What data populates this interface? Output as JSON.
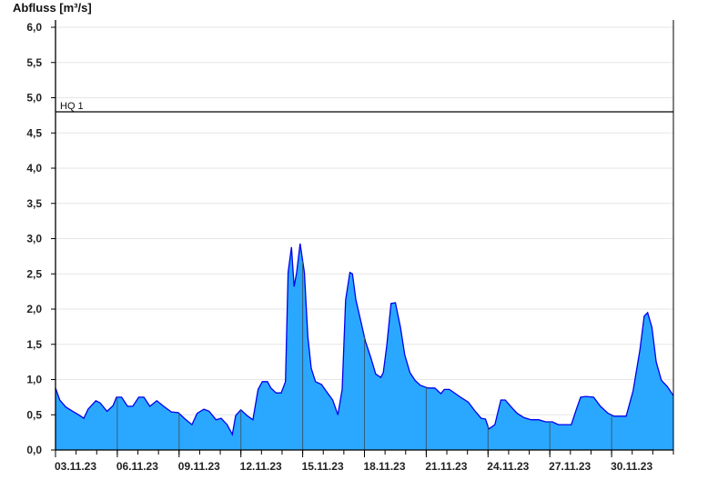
{
  "chart_data": {
    "type": "area",
    "ylabel": "Abfluss [m³/s]",
    "xlabel": "",
    "ylim": [
      0,
      6.0
    ],
    "xlim": [
      "2023-11-03 00:00",
      "2023-12-03 00:00"
    ],
    "y_ticks": [
      "0,0",
      "0,5",
      "1,0",
      "1,5",
      "2,0",
      "2,5",
      "3,0",
      "3,5",
      "4,0",
      "4,5",
      "5,0",
      "5,5",
      "6,0"
    ],
    "x_ticks": [
      {
        "date": "2023-11-03",
        "label": "03.11.23"
      },
      {
        "date": "2023-11-06",
        "label": "06.11.23"
      },
      {
        "date": "2023-11-09",
        "label": "09.11.23"
      },
      {
        "date": "2023-11-12",
        "label": "12.11.23"
      },
      {
        "date": "2023-11-15",
        "label": "15.11.23"
      },
      {
        "date": "2023-11-18",
        "label": "18.11.23"
      },
      {
        "date": "2023-11-21",
        "label": "21.11.23"
      },
      {
        "date": "2023-11-24",
        "label": "24.11.23"
      },
      {
        "date": "2023-11-27",
        "label": "27.11.23"
      },
      {
        "date": "2023-11-30",
        "label": "30.11.23"
      }
    ],
    "grid": true,
    "reference_lines": [
      {
        "label": "HQ 1",
        "value": 4.8
      }
    ],
    "colors": {
      "fill": "#2aa8ff",
      "line": "#0000ee",
      "grid": "#e6e6e6",
      "ref": "#000000"
    },
    "series": [
      {
        "points": [
          [
            "2023-11-03 00:00",
            0.88
          ],
          [
            "2023-11-03 05:00",
            0.71
          ],
          [
            "2023-11-03 12:00",
            0.61
          ],
          [
            "2023-11-03 20:00",
            0.55
          ],
          [
            "2023-11-04 03:00",
            0.5
          ],
          [
            "2023-11-04 09:00",
            0.45
          ],
          [
            "2023-11-04 14:00",
            0.58
          ],
          [
            "2023-11-04 23:00",
            0.7
          ],
          [
            "2023-11-05 04:00",
            0.67
          ],
          [
            "2023-11-05 12:00",
            0.55
          ],
          [
            "2023-11-05 19:00",
            0.63
          ],
          [
            "2023-11-05 23:00",
            0.75
          ],
          [
            "2023-11-06 05:00",
            0.75
          ],
          [
            "2023-11-06 12:00",
            0.62
          ],
          [
            "2023-11-06 18:00",
            0.62
          ],
          [
            "2023-11-07 01:00",
            0.75
          ],
          [
            "2023-11-07 07:00",
            0.75
          ],
          [
            "2023-11-07 14:00",
            0.62
          ],
          [
            "2023-11-07 22:00",
            0.7
          ],
          [
            "2023-11-08 06:00",
            0.62
          ],
          [
            "2023-11-08 15:00",
            0.54
          ],
          [
            "2023-11-08 23:00",
            0.53
          ],
          [
            "2023-11-09 06:00",
            0.45
          ],
          [
            "2023-11-09 15:00",
            0.36
          ],
          [
            "2023-11-09 21:00",
            0.52
          ],
          [
            "2023-11-10 05:00",
            0.58
          ],
          [
            "2023-11-10 11:00",
            0.55
          ],
          [
            "2023-11-10 19:00",
            0.43
          ],
          [
            "2023-11-11 01:00",
            0.45
          ],
          [
            "2023-11-11 08:00",
            0.36
          ],
          [
            "2023-11-11 14:00",
            0.22
          ],
          [
            "2023-11-11 18:00",
            0.49
          ],
          [
            "2023-11-12 00:00",
            0.57
          ],
          [
            "2023-11-12 07:00",
            0.49
          ],
          [
            "2023-11-12 14:00",
            0.43
          ],
          [
            "2023-11-12 20:00",
            0.86
          ],
          [
            "2023-11-13 01:00",
            0.97
          ],
          [
            "2023-11-13 07:00",
            0.97
          ],
          [
            "2023-11-13 11:00",
            0.88
          ],
          [
            "2023-11-13 17:00",
            0.81
          ],
          [
            "2023-11-13 23:00",
            0.81
          ],
          [
            "2023-11-14 04:00",
            0.97
          ],
          [
            "2023-11-14 07:00",
            2.52
          ],
          [
            "2023-11-14 11:00",
            2.88
          ],
          [
            "2023-11-14 14:00",
            2.32
          ],
          [
            "2023-11-14 17:00",
            2.52
          ],
          [
            "2023-11-14 21:00",
            2.93
          ],
          [
            "2023-11-15 02:00",
            2.52
          ],
          [
            "2023-11-15 06:00",
            1.61
          ],
          [
            "2023-11-15 10:00",
            1.16
          ],
          [
            "2023-11-15 15:00",
            0.97
          ],
          [
            "2023-11-15 22:00",
            0.93
          ],
          [
            "2023-11-16 05:00",
            0.81
          ],
          [
            "2023-11-16 11:00",
            0.71
          ],
          [
            "2023-11-16 17:00",
            0.5
          ],
          [
            "2023-11-16 22:00",
            0.86
          ],
          [
            "2023-11-17 02:00",
            2.13
          ],
          [
            "2023-11-17 07:00",
            2.52
          ],
          [
            "2023-11-17 10:00",
            2.5
          ],
          [
            "2023-11-17 14:00",
            2.13
          ],
          [
            "2023-11-17 19:00",
            1.87
          ],
          [
            "2023-11-18 01:00",
            1.55
          ],
          [
            "2023-11-18 08:00",
            1.29
          ],
          [
            "2023-11-18 13:00",
            1.08
          ],
          [
            "2023-11-18 19:00",
            1.03
          ],
          [
            "2023-11-18 22:00",
            1.1
          ],
          [
            "2023-11-19 02:00",
            1.48
          ],
          [
            "2023-11-19 07:00",
            2.08
          ],
          [
            "2023-11-19 12:00",
            2.09
          ],
          [
            "2023-11-19 18:00",
            1.74
          ],
          [
            "2023-11-19 23:00",
            1.35
          ],
          [
            "2023-11-20 05:00",
            1.1
          ],
          [
            "2023-11-20 11:00",
            0.99
          ],
          [
            "2023-11-20 17:00",
            0.92
          ],
          [
            "2023-11-21 02:00",
            0.88
          ],
          [
            "2023-11-21 10:00",
            0.88
          ],
          [
            "2023-11-21 17:00",
            0.8
          ],
          [
            "2023-11-21 21:00",
            0.86
          ],
          [
            "2023-11-22 03:00",
            0.86
          ],
          [
            "2023-11-22 10:00",
            0.8
          ],
          [
            "2023-11-22 17:00",
            0.74
          ],
          [
            "2023-11-23 01:00",
            0.68
          ],
          [
            "2023-11-23 09:00",
            0.55
          ],
          [
            "2023-11-23 16:00",
            0.45
          ],
          [
            "2023-11-23 21:00",
            0.44
          ],
          [
            "2023-11-24 01:00",
            0.3
          ],
          [
            "2023-11-24 08:00",
            0.36
          ],
          [
            "2023-11-24 15:00",
            0.71
          ],
          [
            "2023-11-24 20:00",
            0.71
          ],
          [
            "2023-11-25 03:00",
            0.61
          ],
          [
            "2023-11-25 10:00",
            0.52
          ],
          [
            "2023-11-25 18:00",
            0.46
          ],
          [
            "2023-11-26 02:00",
            0.43
          ],
          [
            "2023-11-26 11:00",
            0.43
          ],
          [
            "2023-11-26 19:00",
            0.4
          ],
          [
            "2023-11-27 03:00",
            0.4
          ],
          [
            "2023-11-27 10:00",
            0.36
          ],
          [
            "2023-11-28 01:00",
            0.36
          ],
          [
            "2023-11-28 07:00",
            0.58
          ],
          [
            "2023-11-28 12:00",
            0.75
          ],
          [
            "2023-11-28 18:00",
            0.76
          ],
          [
            "2023-11-29 03:00",
            0.75
          ],
          [
            "2023-11-29 11:00",
            0.62
          ],
          [
            "2023-11-29 20:00",
            0.52
          ],
          [
            "2023-11-30 03:00",
            0.48
          ],
          [
            "2023-11-30 17:00",
            0.48
          ],
          [
            "2023-12-01 01:00",
            0.84
          ],
          [
            "2023-12-01 09:00",
            1.42
          ],
          [
            "2023-12-01 14:00",
            1.9
          ],
          [
            "2023-12-01 18:00",
            1.95
          ],
          [
            "2023-12-01 23:00",
            1.74
          ],
          [
            "2023-12-02 04:00",
            1.25
          ],
          [
            "2023-12-02 10:00",
            0.99
          ],
          [
            "2023-12-02 17:00",
            0.9
          ],
          [
            "2023-12-03 00:00",
            0.77
          ]
        ]
      }
    ]
  }
}
